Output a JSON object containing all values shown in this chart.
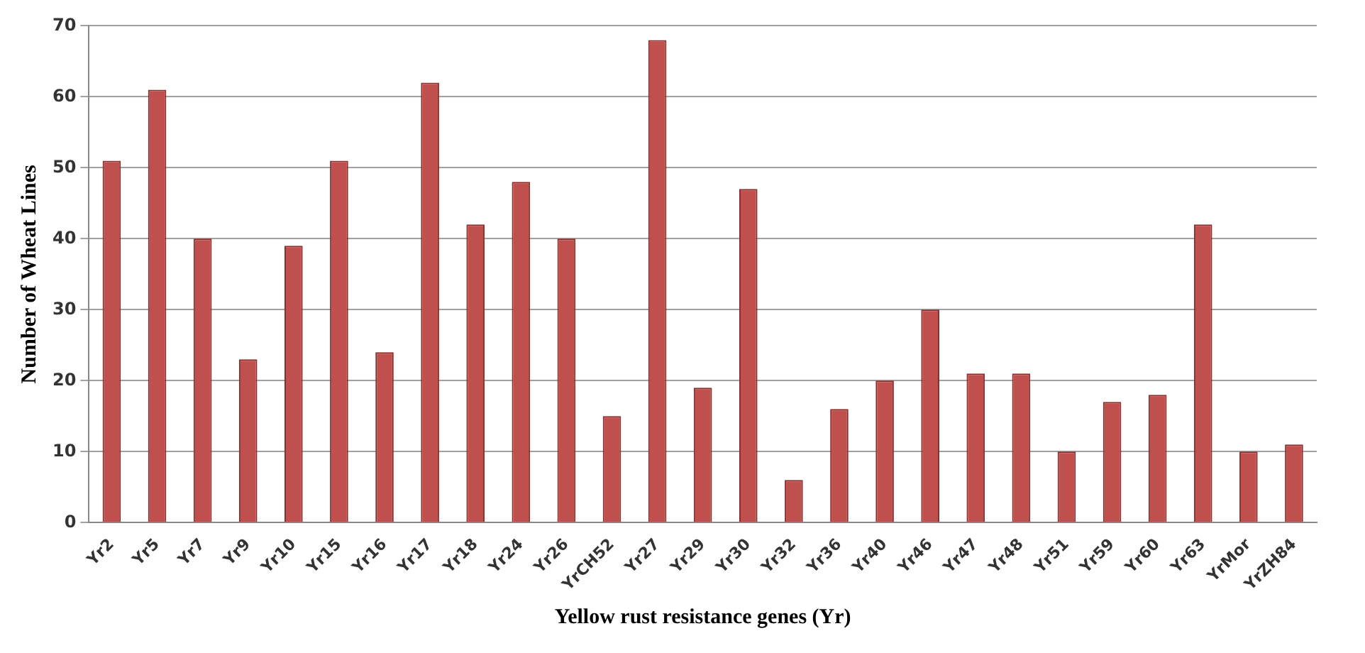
{
  "chart_data": {
    "type": "bar",
    "xlabel": "Yellow rust resistance genes (Yr)",
    "ylabel": "Number of Wheat Lines",
    "categories": [
      "Yr2",
      "Yr5",
      "Yr7",
      "Yr9",
      "Yr10",
      "Yr15",
      "Yr16",
      "Yr17",
      "Yr18",
      "Yr24",
      "Yr26",
      "YrCH52",
      "Yr27",
      "Yr29",
      "Yr30",
      "Yr32",
      "Yr36",
      "Yr40",
      "Yr46",
      "Yr47",
      "Yr48",
      "Yr51",
      "Yr59",
      "Yr60",
      "Yr63",
      "YrMor",
      "YrZH84"
    ],
    "values": [
      51,
      61,
      40,
      23,
      39,
      51,
      24,
      62,
      42,
      48,
      40,
      15,
      68,
      19,
      47,
      6,
      16,
      20,
      30,
      21,
      21,
      10,
      17,
      18,
      42,
      10,
      11
    ],
    "color": "#c0504d",
    "ylim": [
      0,
      70
    ],
    "yticks": [
      0,
      10,
      20,
      30,
      40,
      50,
      60,
      70
    ],
    "grid": "y",
    "legend": false
  }
}
